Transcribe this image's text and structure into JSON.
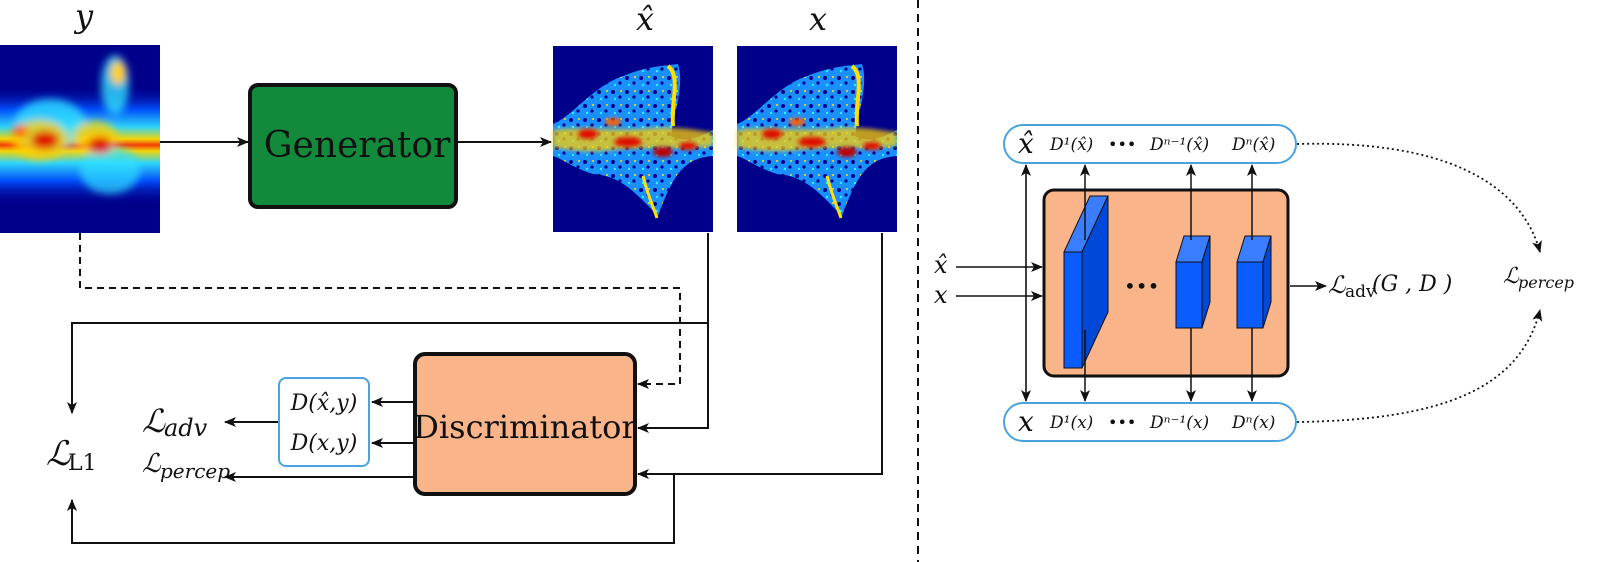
{
  "left": {
    "symbols": {
      "y": "y",
      "x_hat": "x̂",
      "x": "x"
    },
    "generator_label": "Generator",
    "discriminator_label": "Discriminator",
    "d_outputs": [
      "D(x̂,y)",
      "D(x,y)"
    ],
    "losses": {
      "adv": "adv",
      "percep": "percep",
      "l1": "L1",
      "script_L": "ℒ"
    }
  },
  "right": {
    "inputs": [
      "x̂",
      "x"
    ],
    "top_row": {
      "lead": "x̂",
      "d1": "D¹(x̂)",
      "dots": "•••",
      "dn1": "Dⁿ⁻¹(x̂)",
      "dn": "Dⁿ(x̂)"
    },
    "bottom_row": {
      "lead": "x",
      "d1": "D¹(x)",
      "dots": "•••",
      "dn1": "Dⁿ⁻¹(x)",
      "dn": "Dⁿ(x)"
    },
    "middle_dots": "•••",
    "loss_adv_sub": "adv",
    "loss_adv_args": "(G , D )",
    "loss_percep_sub": "percep",
    "script_L": "ℒ"
  },
  "colors": {
    "generator": "#138a3b",
    "discriminator": "#f9b48a",
    "heatmap_bg": "#00008b",
    "blocks": "#0a5cff",
    "outline_blue": "#4aa3df"
  }
}
